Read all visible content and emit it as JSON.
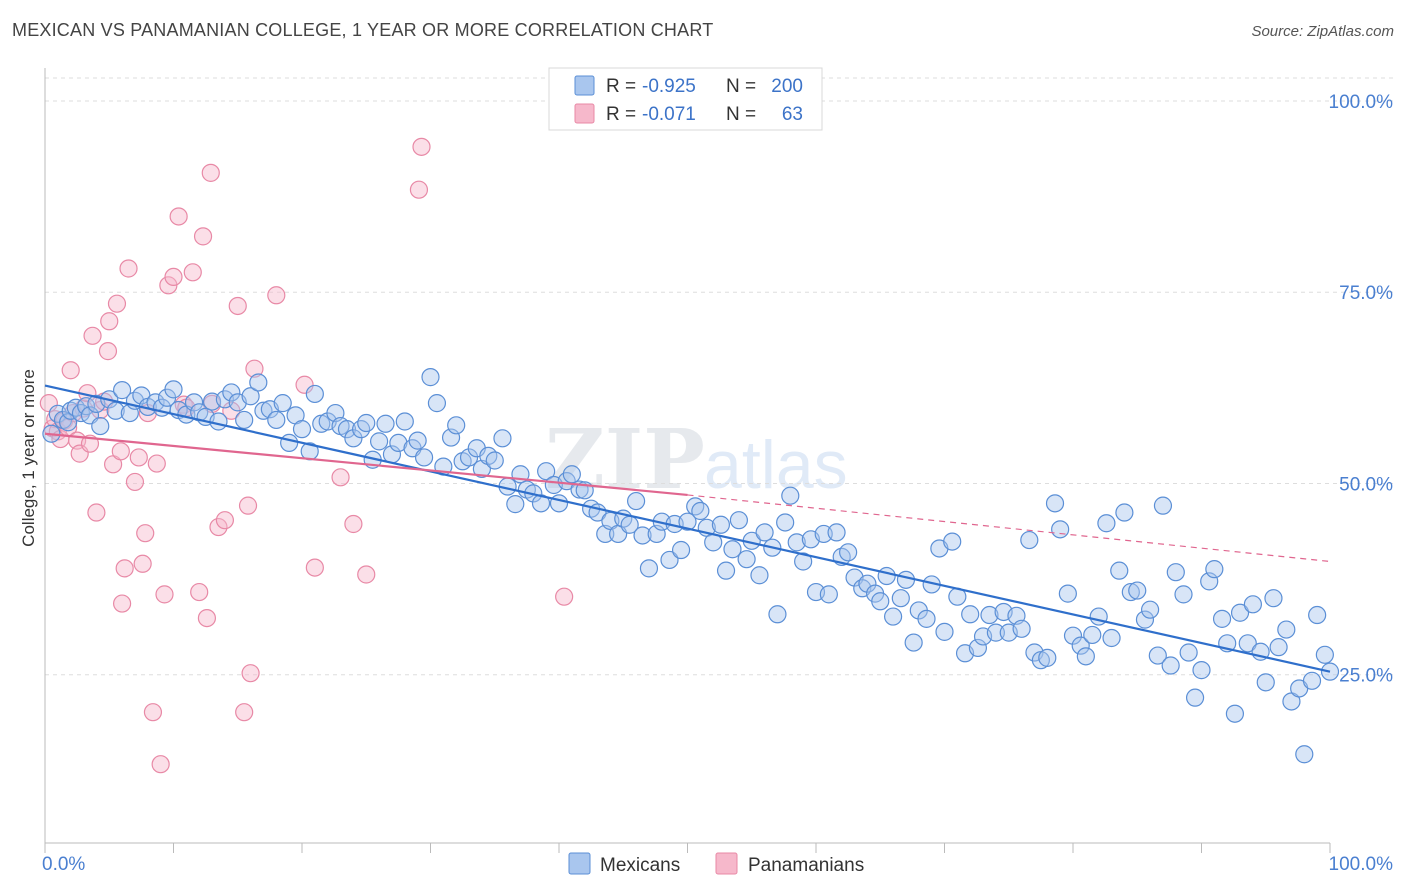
{
  "header": {
    "title": "MEXICAN VS PANAMANIAN COLLEGE, 1 YEAR OR MORE CORRELATION CHART",
    "source": "Source: ZipAtlas.com"
  },
  "legend_top": {
    "rows": [
      {
        "r_label": "R =",
        "r_value": "-0.925",
        "n_label": "N =",
        "n_value": "200"
      },
      {
        "r_label": "R =",
        "r_value": "-0.071",
        "n_label": "N =",
        "n_value": "63"
      }
    ]
  },
  "legend_bottom": {
    "items": [
      {
        "label": "Mexicans"
      },
      {
        "label": "Panamanians"
      }
    ]
  },
  "watermark": {
    "part1": "ZIP",
    "part2": "atlas"
  },
  "colors": {
    "blue_fill": "#a9c6ee",
    "blue_stroke": "#5b8fd6",
    "blue_line": "#2f6fcb",
    "pink_fill": "#f6b8cb",
    "pink_stroke": "#e889a6",
    "pink_line": "#e0668f",
    "tick_label": "#4a7fd0",
    "grid": "#dddddd"
  },
  "chart_data": {
    "type": "scatter",
    "title": "MEXICAN VS PANAMANIAN COLLEGE, 1 YEAR OR MORE CORRELATION CHART",
    "xlabel": "",
    "ylabel": "College, 1 year or more",
    "xlim": [
      0,
      100
    ],
    "ylim": [
      3,
      103
    ],
    "x_ticks": [
      0,
      100
    ],
    "x_tick_labels": [
      "0.0%",
      "100.0%"
    ],
    "y_ticks": [
      25,
      50,
      75,
      100
    ],
    "y_tick_labels": [
      "25.0%",
      "50.0%",
      "75.0%",
      "100.0%"
    ],
    "grid": true,
    "legend_position": "top-center",
    "series": [
      {
        "name": "Mexicans",
        "r": -0.925,
        "n": 200,
        "trend": {
          "x": [
            0,
            100
          ],
          "y": [
            62.8,
            25.4
          ],
          "dashed_extension": false
        },
        "points": [
          [
            0.5,
            56.5
          ],
          [
            1.0,
            59.1
          ],
          [
            1.4,
            58.3
          ],
          [
            1.8,
            58.0
          ],
          [
            2.0,
            59.5
          ],
          [
            2.4,
            59.9
          ],
          [
            2.8,
            59.2
          ],
          [
            3.2,
            60.1
          ],
          [
            3.5,
            58.9
          ],
          [
            4.0,
            60.4
          ],
          [
            4.3,
            57.5
          ],
          [
            5.0,
            61.0
          ],
          [
            5.5,
            59.5
          ],
          [
            6.0,
            62.2
          ],
          [
            6.6,
            59.2
          ],
          [
            7.0,
            60.8
          ],
          [
            7.5,
            61.5
          ],
          [
            8.0,
            60.0
          ],
          [
            8.6,
            60.6
          ],
          [
            9.1,
            59.9
          ],
          [
            9.5,
            61.2
          ],
          [
            10.0,
            62.3
          ],
          [
            10.4,
            59.6
          ],
          [
            11.0,
            59.0
          ],
          [
            11.6,
            60.6
          ],
          [
            12.0,
            59.3
          ],
          [
            12.5,
            58.7
          ],
          [
            13.0,
            60.7
          ],
          [
            13.5,
            58.1
          ],
          [
            14.0,
            61.0
          ],
          [
            14.5,
            61.9
          ],
          [
            15.0,
            60.6
          ],
          [
            15.5,
            58.3
          ],
          [
            16.0,
            61.4
          ],
          [
            16.6,
            63.2
          ],
          [
            17.0,
            59.5
          ],
          [
            17.5,
            59.7
          ],
          [
            18.0,
            58.3
          ],
          [
            18.5,
            60.5
          ],
          [
            19.0,
            55.3
          ],
          [
            19.5,
            58.9
          ],
          [
            20.0,
            57.1
          ],
          [
            20.6,
            54.2
          ],
          [
            21.0,
            61.7
          ],
          [
            21.5,
            57.8
          ],
          [
            22.0,
            58.1
          ],
          [
            22.6,
            59.2
          ],
          [
            23.0,
            57.5
          ],
          [
            23.5,
            57.1
          ],
          [
            24.0,
            55.9
          ],
          [
            24.6,
            57.1
          ],
          [
            25.0,
            57.9
          ],
          [
            25.5,
            53.1
          ],
          [
            26.0,
            55.5
          ],
          [
            26.5,
            57.8
          ],
          [
            27.0,
            53.8
          ],
          [
            27.5,
            55.3
          ],
          [
            28.0,
            58.1
          ],
          [
            28.6,
            54.6
          ],
          [
            29.0,
            55.6
          ],
          [
            29.5,
            53.4
          ],
          [
            30.0,
            63.9
          ],
          [
            30.5,
            60.5
          ],
          [
            31.0,
            52.2
          ],
          [
            31.6,
            56.0
          ],
          [
            32.0,
            57.6
          ],
          [
            32.5,
            52.9
          ],
          [
            33.0,
            53.4
          ],
          [
            33.6,
            54.6
          ],
          [
            34.0,
            51.9
          ],
          [
            34.5,
            53.6
          ],
          [
            35.0,
            53.0
          ],
          [
            35.6,
            55.9
          ],
          [
            36.0,
            49.6
          ],
          [
            36.6,
            47.3
          ],
          [
            37.0,
            51.2
          ],
          [
            37.5,
            49.2
          ],
          [
            38.0,
            48.7
          ],
          [
            38.6,
            47.4
          ],
          [
            39.0,
            51.6
          ],
          [
            39.6,
            49.8
          ],
          [
            40.0,
            47.4
          ],
          [
            40.6,
            50.3
          ],
          [
            41.0,
            51.2
          ],
          [
            41.6,
            49.2
          ],
          [
            42.0,
            49.1
          ],
          [
            42.5,
            46.7
          ],
          [
            43.0,
            46.2
          ],
          [
            43.6,
            43.4
          ],
          [
            44.0,
            45.1
          ],
          [
            44.6,
            43.4
          ],
          [
            45.0,
            45.4
          ],
          [
            45.5,
            44.6
          ],
          [
            46.0,
            47.7
          ],
          [
            46.5,
            43.2
          ],
          [
            47.0,
            38.9
          ],
          [
            47.6,
            43.4
          ],
          [
            48.0,
            45.0
          ],
          [
            48.6,
            40.0
          ],
          [
            49.0,
            44.7
          ],
          [
            49.5,
            41.3
          ],
          [
            50.0,
            45.0
          ],
          [
            50.6,
            47.0
          ],
          [
            51.0,
            46.4
          ],
          [
            51.5,
            44.2
          ],
          [
            52.0,
            42.3
          ],
          [
            52.6,
            44.6
          ],
          [
            53.0,
            38.6
          ],
          [
            53.5,
            41.4
          ],
          [
            54.0,
            45.2
          ],
          [
            54.6,
            40.1
          ],
          [
            55.0,
            42.5
          ],
          [
            55.6,
            38.0
          ],
          [
            56.0,
            43.6
          ],
          [
            56.6,
            41.6
          ],
          [
            57.0,
            32.9
          ],
          [
            57.6,
            44.9
          ],
          [
            58.0,
            48.4
          ],
          [
            58.5,
            42.3
          ],
          [
            59.0,
            39.8
          ],
          [
            59.6,
            42.7
          ],
          [
            60.0,
            35.8
          ],
          [
            60.6,
            43.4
          ],
          [
            61.0,
            35.5
          ],
          [
            61.6,
            43.6
          ],
          [
            62.0,
            40.4
          ],
          [
            62.5,
            41.0
          ],
          [
            63.0,
            37.7
          ],
          [
            63.6,
            36.3
          ],
          [
            64.0,
            36.9
          ],
          [
            64.6,
            35.6
          ],
          [
            65.0,
            34.6
          ],
          [
            65.5,
            37.9
          ],
          [
            66.0,
            32.6
          ],
          [
            66.6,
            35.0
          ],
          [
            67.0,
            37.4
          ],
          [
            67.6,
            29.2
          ],
          [
            68.0,
            33.4
          ],
          [
            68.6,
            32.3
          ],
          [
            69.0,
            36.8
          ],
          [
            69.6,
            41.5
          ],
          [
            70.0,
            30.6
          ],
          [
            70.6,
            42.4
          ],
          [
            71.0,
            35.2
          ],
          [
            71.6,
            27.8
          ],
          [
            72.0,
            32.9
          ],
          [
            72.6,
            28.5
          ],
          [
            73.0,
            30.0
          ],
          [
            73.5,
            32.8
          ],
          [
            74.0,
            30.5
          ],
          [
            74.6,
            33.2
          ],
          [
            75.0,
            30.5
          ],
          [
            75.6,
            32.7
          ],
          [
            76.0,
            31.0
          ],
          [
            76.6,
            42.6
          ],
          [
            77.0,
            27.9
          ],
          [
            77.5,
            26.9
          ],
          [
            78.0,
            27.2
          ],
          [
            78.6,
            47.4
          ],
          [
            79.0,
            44.0
          ],
          [
            79.6,
            35.6
          ],
          [
            80.0,
            30.1
          ],
          [
            80.6,
            28.8
          ],
          [
            81.0,
            27.4
          ],
          [
            81.5,
            30.2
          ],
          [
            82.0,
            32.6
          ],
          [
            82.6,
            44.8
          ],
          [
            83.0,
            29.8
          ],
          [
            83.6,
            38.6
          ],
          [
            84.0,
            46.2
          ],
          [
            84.5,
            35.8
          ],
          [
            85.0,
            36.0
          ],
          [
            85.6,
            32.2
          ],
          [
            86.0,
            33.5
          ],
          [
            86.6,
            27.5
          ],
          [
            87.0,
            47.1
          ],
          [
            87.6,
            26.2
          ],
          [
            88.0,
            38.4
          ],
          [
            88.6,
            35.5
          ],
          [
            89.0,
            27.9
          ],
          [
            89.5,
            22.0
          ],
          [
            90.0,
            25.6
          ],
          [
            90.6,
            37.2
          ],
          [
            91.0,
            38.8
          ],
          [
            91.6,
            32.3
          ],
          [
            92.0,
            29.1
          ],
          [
            92.6,
            19.9
          ],
          [
            93.0,
            33.1
          ],
          [
            93.6,
            29.1
          ],
          [
            94.0,
            34.2
          ],
          [
            94.6,
            28.0
          ],
          [
            95.0,
            24.0
          ],
          [
            95.6,
            35.0
          ],
          [
            96.0,
            28.6
          ],
          [
            96.6,
            30.9
          ],
          [
            97.0,
            21.5
          ],
          [
            97.6,
            23.2
          ],
          [
            98.0,
            14.6
          ],
          [
            98.6,
            24.2
          ],
          [
            99.0,
            32.8
          ],
          [
            99.6,
            27.6
          ],
          [
            100.0,
            25.4
          ]
        ]
      },
      {
        "name": "Panamanians",
        "r": -0.071,
        "n": 63,
        "trend": {
          "x": [
            0,
            50
          ],
          "y": [
            56.5,
            48.5
          ],
          "dashed_extension": {
            "x": [
              50,
              100
            ],
            "y": [
              48.5,
              39.8
            ]
          }
        },
        "points": [
          [
            0.3,
            60.5
          ],
          [
            0.6,
            57.2
          ],
          [
            0.8,
            58.4
          ],
          [
            1.0,
            56.8
          ],
          [
            1.2,
            55.8
          ],
          [
            1.5,
            58.2
          ],
          [
            1.8,
            57.3
          ],
          [
            2.0,
            64.8
          ],
          [
            2.2,
            59.2
          ],
          [
            2.5,
            55.6
          ],
          [
            2.7,
            53.9
          ],
          [
            3.0,
            59.8
          ],
          [
            3.3,
            61.8
          ],
          [
            3.5,
            55.2
          ],
          [
            3.7,
            69.3
          ],
          [
            4.0,
            46.2
          ],
          [
            4.3,
            59.6
          ],
          [
            4.6,
            60.7
          ],
          [
            4.9,
            67.3
          ],
          [
            5.0,
            71.2
          ],
          [
            5.3,
            52.5
          ],
          [
            5.6,
            73.5
          ],
          [
            5.9,
            54.2
          ],
          [
            6.0,
            34.3
          ],
          [
            6.2,
            38.9
          ],
          [
            6.5,
            78.1
          ],
          [
            7.0,
            50.2
          ],
          [
            7.3,
            53.4
          ],
          [
            7.6,
            39.5
          ],
          [
            7.8,
            43.5
          ],
          [
            8.0,
            59.2
          ],
          [
            8.4,
            20.1
          ],
          [
            8.7,
            52.6
          ],
          [
            9.0,
            13.3
          ],
          [
            9.3,
            35.5
          ],
          [
            9.6,
            75.9
          ],
          [
            10.0,
            77.0
          ],
          [
            10.4,
            84.9
          ],
          [
            10.8,
            60.3
          ],
          [
            11.0,
            59.9
          ],
          [
            11.5,
            77.6
          ],
          [
            12.0,
            35.8
          ],
          [
            12.3,
            82.3
          ],
          [
            12.6,
            32.4
          ],
          [
            12.9,
            90.6
          ],
          [
            13.0,
            60.4
          ],
          [
            13.5,
            44.3
          ],
          [
            14.0,
            45.2
          ],
          [
            14.5,
            59.5
          ],
          [
            15.0,
            73.2
          ],
          [
            15.5,
            20.1
          ],
          [
            15.8,
            47.1
          ],
          [
            16.0,
            25.2
          ],
          [
            16.3,
            65.0
          ],
          [
            18.0,
            74.6
          ],
          [
            20.2,
            62.9
          ],
          [
            21.0,
            39.0
          ],
          [
            23.0,
            50.8
          ],
          [
            24.0,
            44.7
          ],
          [
            25.0,
            38.1
          ],
          [
            29.1,
            88.4
          ],
          [
            29.3,
            94.0
          ],
          [
            40.4,
            35.2
          ]
        ]
      }
    ]
  }
}
